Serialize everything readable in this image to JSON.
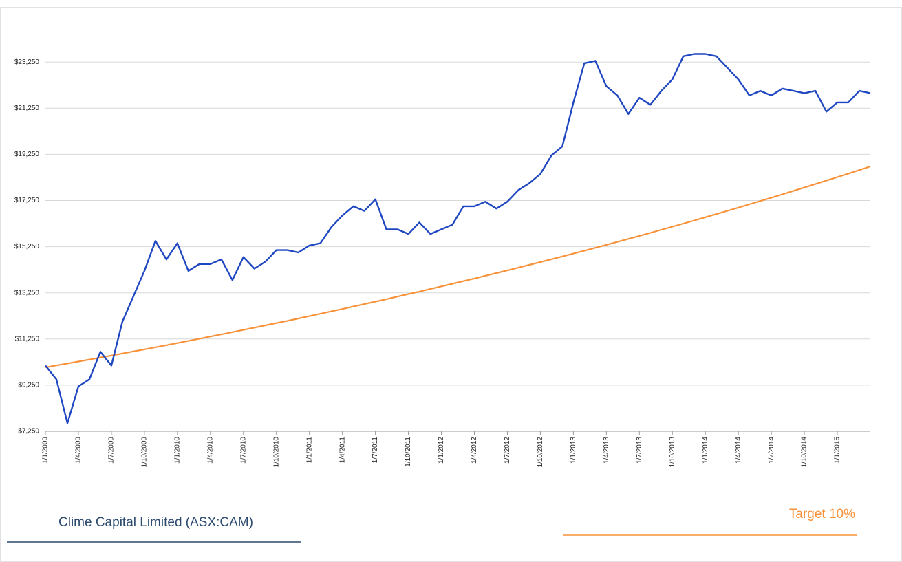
{
  "chart_data": {
    "type": "line",
    "x": [
      "1/1/2009",
      "1/2/2009",
      "1/3/2009",
      "1/4/2009",
      "1/5/2009",
      "1/6/2009",
      "1/7/2009",
      "1/8/2009",
      "1/9/2009",
      "1/10/2009",
      "1/11/2009",
      "1/12/2009",
      "1/1/2010",
      "1/2/2010",
      "1/3/2010",
      "1/4/2010",
      "1/5/2010",
      "1/6/2010",
      "1/7/2010",
      "1/8/2010",
      "1/9/2010",
      "1/10/2010",
      "1/11/2010",
      "1/12/2010",
      "1/1/2011",
      "1/2/2011",
      "1/3/2011",
      "1/4/2011",
      "1/5/2011",
      "1/6/2011",
      "1/7/2011",
      "1/8/2011",
      "1/9/2011",
      "1/10/2011",
      "1/11/2011",
      "1/12/2011",
      "1/1/2012",
      "1/2/2012",
      "1/3/2012",
      "1/4/2012",
      "1/5/2012",
      "1/6/2012",
      "1/7/2012",
      "1/8/2012",
      "1/9/2012",
      "1/10/2012",
      "1/11/2012",
      "1/12/2012",
      "1/1/2013",
      "1/2/2013",
      "1/3/2013",
      "1/4/2013",
      "1/5/2013",
      "1/6/2013",
      "1/7/2013",
      "1/8/2013",
      "1/9/2013",
      "1/10/2013",
      "1/11/2013",
      "1/12/2013",
      "1/1/2014",
      "1/2/2014",
      "1/3/2014",
      "1/4/2014",
      "1/5/2014",
      "1/6/2014",
      "1/7/2014",
      "1/8/2014",
      "1/9/2014",
      "1/10/2014",
      "1/11/2014",
      "1/12/2014",
      "1/1/2015",
      "1/2/2015",
      "1/3/2015",
      "1/4/2015"
    ],
    "series": [
      {
        "name": "Clime Capital Limited (ASX:CAM)",
        "color": "#1f47c1",
        "values": [
          10100,
          9500,
          7600,
          9200,
          9500,
          10700,
          10100,
          12000,
          13100,
          14200,
          15500,
          14700,
          15400,
          14200,
          14500,
          14500,
          14700,
          13800,
          14800,
          14300,
          14600,
          15100,
          15100,
          15000,
          15300,
          15400,
          16100,
          16600,
          17000,
          16800,
          17300,
          16000,
          16000,
          15800,
          16300,
          15800,
          16000,
          16200,
          17000,
          17000,
          17200,
          16900,
          17200,
          17700,
          18000,
          18400,
          19200,
          19600,
          21500,
          23200,
          23300,
          22200,
          21800,
          21000,
          21700,
          21400,
          22000,
          22500,
          23500,
          23600,
          23600,
          23500,
          23000,
          22500,
          21800,
          22000,
          21800,
          22100,
          22000,
          21900,
          22000,
          21100,
          21500,
          21500,
          22000,
          21900
        ]
      },
      {
        "name": "Target 10%",
        "color": "#f7923a",
        "values": [
          10020,
          10104,
          10189,
          10274,
          10360,
          10447,
          10534,
          10623,
          10712,
          10801,
          10892,
          10983,
          11075,
          11168,
          11261,
          11356,
          11451,
          11547,
          11643,
          11741,
          11839,
          11938,
          12038,
          12139,
          12241,
          12343,
          12447,
          12551,
          12656,
          12762,
          12869,
          12976,
          13085,
          13195,
          13305,
          13416,
          13529,
          13642,
          13756,
          13871,
          13988,
          14105,
          14223,
          14342,
          14462,
          14583,
          14705,
          14828,
          14952,
          15077,
          15203,
          15331,
          15459,
          15588,
          15719,
          15850,
          15983,
          16117,
          16251,
          16387,
          16525,
          16663,
          16802,
          16943,
          17085,
          17228,
          17372,
          17517,
          17664,
          17812,
          17961,
          18111,
          18263,
          18415,
          18569,
          18725
        ]
      }
    ],
    "xlim": [
      "1/1/2009",
      "1/4/2015"
    ],
    "xticks": [
      "1/1/2009",
      "1/4/2009",
      "1/7/2009",
      "1/10/2009",
      "1/1/2010",
      "1/4/2010",
      "1/7/2010",
      "1/10/2010",
      "1/1/2011",
      "1/4/2011",
      "1/7/2011",
      "1/10/2011",
      "1/1/2012",
      "1/4/2012",
      "1/7/2012",
      "1/10/2012",
      "1/1/2013",
      "1/4/2013",
      "1/7/2013",
      "1/10/2013",
      "1/1/2014",
      "1/4/2014",
      "1/7/2014",
      "1/10/2014",
      "1/1/2015"
    ],
    "ylim": [
      7250,
      24250
    ],
    "yticks": [
      {
        "value": 7250,
        "label": "$7,250"
      },
      {
        "value": 9250,
        "label": "$9,250"
      },
      {
        "value": 11250,
        "label": "$11,250"
      },
      {
        "value": 13250,
        "label": "$13,250"
      },
      {
        "value": 15250,
        "label": "$15,250"
      },
      {
        "value": 17250,
        "label": "$17,250"
      },
      {
        "value": 19250,
        "label": "$19,250"
      },
      {
        "value": 21250,
        "label": "$21,250"
      },
      {
        "value": 23250,
        "label": "$23,250"
      }
    ],
    "grid": true
  }
}
